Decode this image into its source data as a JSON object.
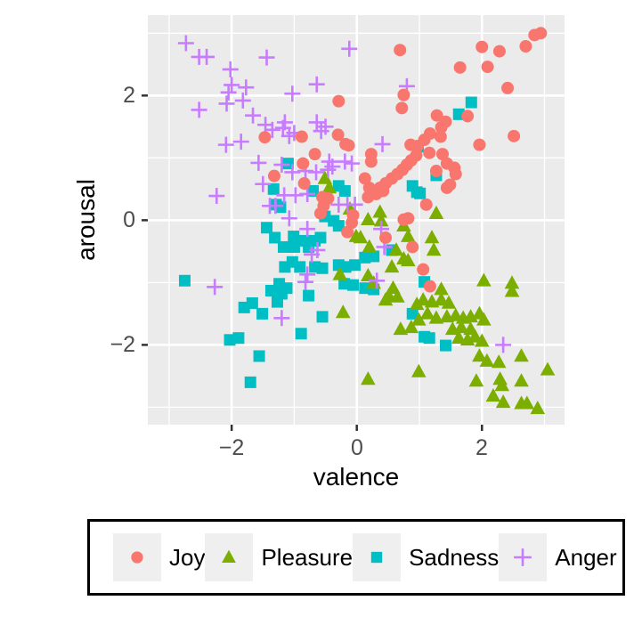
{
  "axes": {
    "x_tick_labels": [
      "−2",
      "0",
      "2"
    ],
    "y_tick_labels": [
      "2",
      "0",
      "−2"
    ]
  },
  "chart_data": {
    "type": "scatter",
    "xlabel": "valence",
    "ylabel": "arousal",
    "xlim": [
      -3.34,
      3.32
    ],
    "ylim": [
      -3.28,
      3.29
    ],
    "x_major_ticks": [
      -2,
      0,
      2
    ],
    "x_minor_ticks": [
      -3,
      -1,
      1,
      3
    ],
    "y_major_ticks": [
      -2,
      0,
      2
    ],
    "y_minor_ticks": [
      -3,
      -1,
      1,
      3
    ],
    "grid": true,
    "panel_bg": "#EBEBEB",
    "grid_color": "#FFFFFF",
    "tick_color": "#333333",
    "legend_position": "bottom",
    "series": [
      {
        "name": "Joy",
        "marker": "circle",
        "color": "#F8766D",
        "points": [
          [
            -1.47,
            1.33
          ],
          [
            0.69,
            2.73
          ],
          [
            0.75,
            2.01
          ],
          [
            -0.29,
            1.91
          ],
          [
            0.72,
            1.8
          ],
          [
            -0.88,
            1.34
          ],
          [
            -0.3,
            1.37
          ],
          [
            -0.18,
            1.22
          ],
          [
            -0.13,
            1.2
          ],
          [
            0.86,
            1.21
          ],
          [
            0.97,
            1.19
          ],
          [
            2.94,
            3.0
          ],
          [
            2.84,
            2.97
          ],
          [
            2.7,
            2.79
          ],
          [
            2.28,
            2.71
          ],
          [
            2.0,
            2.78
          ],
          [
            2.09,
            2.46
          ],
          [
            1.65,
            2.45
          ],
          [
            2.41,
            2.12
          ],
          [
            1.28,
            1.68
          ],
          [
            1.42,
            1.58
          ],
          [
            1.77,
            1.67
          ],
          [
            1.35,
            1.49
          ],
          [
            1.17,
            1.39
          ],
          [
            1.34,
            1.34
          ],
          [
            1.08,
            1.29
          ],
          [
            2.51,
            1.35
          ],
          [
            1.96,
            1.21
          ],
          [
            -1.32,
            0.71
          ],
          [
            -0.86,
            0.91
          ],
          [
            -0.67,
            1.06
          ],
          [
            -0.84,
            0.59
          ],
          [
            -0.55,
            0.37
          ],
          [
            -0.46,
            0.35
          ],
          [
            -0.53,
            0.23
          ],
          [
            -0.58,
            0.11
          ],
          [
            0.23,
            1.06
          ],
          [
            0.23,
            0.94
          ],
          [
            0.13,
            0.67
          ],
          [
            0.18,
            0.37
          ],
          [
            0.27,
            0.45
          ],
          [
            0.37,
            0.52
          ],
          [
            0.46,
            0.59
          ],
          [
            0.56,
            0.67
          ],
          [
            0.65,
            0.74
          ],
          [
            0.73,
            0.81
          ],
          [
            0.8,
            0.89
          ],
          [
            0.87,
            0.96
          ],
          [
            0.95,
            1.04
          ],
          [
            0.2,
            0.52
          ],
          [
            0.31,
            0.42
          ],
          [
            0.42,
            0.47
          ],
          [
            -0.06,
            0.08
          ],
          [
            -0.15,
            -0.19
          ],
          [
            -0.08,
            -0.04
          ],
          [
            0.75,
            0.01
          ],
          [
            0.82,
            0.03
          ],
          [
            0.46,
            -0.28
          ],
          [
            0.89,
            -0.43
          ],
          [
            1.16,
            1.08
          ],
          [
            1.37,
            1.06
          ],
          [
            1.44,
            0.91
          ],
          [
            1.56,
            0.84
          ],
          [
            1.58,
            0.74
          ],
          [
            1.49,
            0.57
          ],
          [
            1.44,
            0.52
          ],
          [
            1.27,
            0.79
          ],
          [
            1.11,
            0.25
          ],
          [
            1.06,
            -0.79
          ],
          [
            1.17,
            -1.06
          ]
        ]
      },
      {
        "name": "Pleasure",
        "marker": "triangle",
        "color": "#7CAE00",
        "points": [
          [
            -0.51,
            0.67
          ],
          [
            -0.44,
            0.52
          ],
          [
            -0.11,
            0.18
          ],
          [
            0.18,
            0.01
          ],
          [
            0.37,
            0.13
          ],
          [
            0.39,
            -0.01
          ],
          [
            -0.01,
            -0.26
          ],
          [
            0.06,
            -0.28
          ],
          [
            0.2,
            -0.43
          ],
          [
            0.75,
            -0.09
          ],
          [
            0.82,
            -0.26
          ],
          [
            0.63,
            -0.48
          ],
          [
            0.75,
            -0.62
          ],
          [
            0.82,
            -0.65
          ],
          [
            -0.27,
            -0.87
          ],
          [
            0.18,
            -0.89
          ],
          [
            0.27,
            -1.01
          ],
          [
            0.56,
            -0.75
          ],
          [
            0.58,
            -1.09
          ],
          [
            1.27,
            0.11
          ],
          [
            1.2,
            -0.28
          ],
          [
            1.23,
            -0.48
          ],
          [
            1.35,
            -1.11
          ],
          [
            2.03,
            -0.97
          ],
          [
            2.48,
            -1.01
          ],
          [
            2.48,
            -1.14
          ],
          [
            -0.22,
            -1.48
          ],
          [
            0.51,
            -1.21
          ],
          [
            0.65,
            -1.23
          ],
          [
            0.46,
            -1.28
          ],
          [
            0.96,
            -1.35
          ],
          [
            0.7,
            -1.75
          ],
          [
            0.87,
            -1.72
          ],
          [
            0.99,
            -1.6
          ],
          [
            0.18,
            -2.55
          ],
          [
            0.99,
            -2.43
          ],
          [
            1.06,
            -1.28
          ],
          [
            1.2,
            -1.31
          ],
          [
            1.35,
            -1.28
          ],
          [
            1.47,
            -1.33
          ],
          [
            1.13,
            -1.5
          ],
          [
            1.27,
            -1.57
          ],
          [
            1.44,
            -1.55
          ],
          [
            1.58,
            -1.53
          ],
          [
            1.7,
            -1.57
          ],
          [
            1.82,
            -1.55
          ],
          [
            1.96,
            -1.5
          ],
          [
            2.03,
            -1.6
          ],
          [
            1.53,
            -1.75
          ],
          [
            1.67,
            -1.72
          ],
          [
            1.82,
            -1.75
          ],
          [
            1.63,
            -1.89
          ],
          [
            1.77,
            -1.92
          ],
          [
            1.89,
            -1.87
          ],
          [
            2.0,
            -1.94
          ],
          [
            1.96,
            -2.18
          ],
          [
            2.08,
            -2.26
          ],
          [
            2.27,
            -2.28
          ],
          [
            2.63,
            -2.18
          ],
          [
            1.91,
            -2.58
          ],
          [
            2.29,
            -2.55
          ],
          [
            2.32,
            -2.65
          ],
          [
            2.18,
            -2.82
          ],
          [
            2.34,
            -2.92
          ],
          [
            2.63,
            -2.58
          ],
          [
            2.63,
            -2.94
          ],
          [
            2.72,
            -2.94
          ],
          [
            2.89,
            -3.02
          ],
          [
            3.05,
            -2.4
          ]
        ]
      },
      {
        "name": "Sadness",
        "marker": "square",
        "color": "#00BFC4",
        "points": [
          [
            1.83,
            1.89
          ],
          [
            1.63,
            1.7
          ],
          [
            0.98,
            1.18
          ],
          [
            -1.33,
            0.5
          ],
          [
            -1.44,
            -0.12
          ],
          [
            -1.31,
            -0.28
          ],
          [
            -2.75,
            -0.97
          ],
          [
            -1.37,
            -1.13
          ],
          [
            -1.1,
            0.91
          ],
          [
            -0.7,
            0.47
          ],
          [
            -0.29,
            0.55
          ],
          [
            -0.19,
            0.47
          ],
          [
            -0.51,
            0.06
          ],
          [
            -0.37,
            -0.01
          ],
          [
            -1.29,
            0.25
          ],
          [
            -1.22,
            0.21
          ],
          [
            -1.01,
            -0.26
          ],
          [
            -1.17,
            -0.43
          ],
          [
            -1.0,
            -0.43
          ],
          [
            -0.84,
            -0.33
          ],
          [
            -0.67,
            -0.33
          ],
          [
            -0.58,
            -0.28
          ],
          [
            -0.77,
            -0.43
          ],
          [
            -1.03,
            -0.67
          ],
          [
            -0.91,
            -0.75
          ],
          [
            -1.15,
            -0.75
          ],
          [
            -0.67,
            -0.75
          ],
          [
            -0.55,
            -0.77
          ],
          [
            -1.24,
            -1.02
          ],
          [
            -1.12,
            -1.09
          ],
          [
            -0.29,
            -0.72
          ],
          [
            -0.18,
            -0.75
          ],
          [
            -0.03,
            -0.72
          ],
          [
            0.13,
            -0.6
          ],
          [
            0.27,
            -0.58
          ],
          [
            -0.2,
            -1.02
          ],
          [
            -0.06,
            -1.04
          ],
          [
            0.13,
            -1.09
          ],
          [
            0.27,
            -1.11
          ],
          [
            0.56,
            -0.48
          ],
          [
            0.89,
            0.55
          ],
          [
            0.96,
            0.45
          ],
          [
            -0.29,
            -0.09
          ],
          [
            1.27,
            0.72
          ],
          [
            1.01,
            0.43
          ],
          [
            1.08,
            -0.99
          ],
          [
            -1.8,
            -1.4
          ],
          [
            -1.67,
            -1.33
          ],
          [
            -1.51,
            -1.5
          ],
          [
            -1.27,
            -1.31
          ],
          [
            -2.03,
            -1.92
          ],
          [
            -1.89,
            -1.89
          ],
          [
            -1.56,
            -2.18
          ],
          [
            -1.7,
            -2.6
          ],
          [
            -1.2,
            -1.18
          ],
          [
            -0.77,
            -1.21
          ],
          [
            -0.55,
            -1.55
          ],
          [
            -0.89,
            -1.82
          ],
          [
            0.89,
            -1.5
          ],
          [
            1.08,
            -1.87
          ],
          [
            1.16,
            -1.89
          ],
          [
            1.42,
            -2.01
          ]
        ]
      },
      {
        "name": "Anger",
        "marker": "cross",
        "color": "#C77CFF",
        "points": [
          [
            -2.73,
            2.84
          ],
          [
            -2.52,
            2.62
          ],
          [
            -2.4,
            2.62
          ],
          [
            -2.02,
            2.42
          ],
          [
            -1.44,
            2.61
          ],
          [
            -2.0,
            2.17
          ],
          [
            -2.05,
            2.05
          ],
          [
            -1.77,
            2.13
          ],
          [
            -2.08,
            1.87
          ],
          [
            -2.52,
            1.77
          ],
          [
            -1.82,
            1.92
          ],
          [
            -1.66,
            1.68
          ],
          [
            -1.46,
            1.53
          ],
          [
            -1.35,
            1.45
          ],
          [
            -2.09,
            1.21
          ],
          [
            -1.85,
            1.26
          ],
          [
            -1.15,
            1.57
          ],
          [
            -1.0,
            1.4
          ],
          [
            -0.12,
            2.75
          ],
          [
            -0.64,
            2.18
          ],
          [
            -1.03,
            2.03
          ],
          [
            0.8,
            2.15
          ],
          [
            0.41,
            1.22
          ],
          [
            -0.64,
            1.57
          ],
          [
            -0.5,
            1.5
          ],
          [
            -0.57,
            1.43
          ],
          [
            -1.18,
            1.48
          ],
          [
            -1.08,
            1.35
          ],
          [
            -1.57,
            0.92
          ],
          [
            -1.5,
            0.58
          ],
          [
            -2.24,
            0.39
          ],
          [
            -1.39,
            0.23
          ],
          [
            -1.3,
            0.23
          ],
          [
            -2.27,
            -1.07
          ],
          [
            -1.2,
            0.89
          ],
          [
            -1.03,
            0.77
          ],
          [
            -0.82,
            0.79
          ],
          [
            -0.65,
            0.77
          ],
          [
            -0.46,
            0.81
          ],
          [
            -0.39,
            0.86
          ],
          [
            -0.19,
            0.94
          ],
          [
            -0.08,
            0.91
          ],
          [
            -1.16,
            0.4
          ],
          [
            -0.98,
            0.4
          ],
          [
            -0.79,
            0.42
          ],
          [
            -0.29,
            0.25
          ],
          [
            -0.15,
            0.25
          ],
          [
            -0.03,
            0.25
          ],
          [
            -1.08,
            0.03
          ],
          [
            -0.79,
            -0.14
          ],
          [
            -0.63,
            -0.48
          ],
          [
            -0.72,
            -0.55
          ],
          [
            -0.79,
            -0.87
          ],
          [
            -0.82,
            -0.99
          ],
          [
            0.39,
            -0.14
          ],
          [
            0.44,
            -0.43
          ],
          [
            0.32,
            -0.97
          ],
          [
            -0.44,
            0.94
          ],
          [
            -1.2,
            -1.57
          ],
          [
            2.34,
            -2.0
          ]
        ]
      }
    ]
  },
  "legend": {
    "items": [
      {
        "label": "Joy"
      },
      {
        "label": "Pleasure"
      },
      {
        "label": "Sadness"
      },
      {
        "label": "Anger"
      }
    ]
  }
}
